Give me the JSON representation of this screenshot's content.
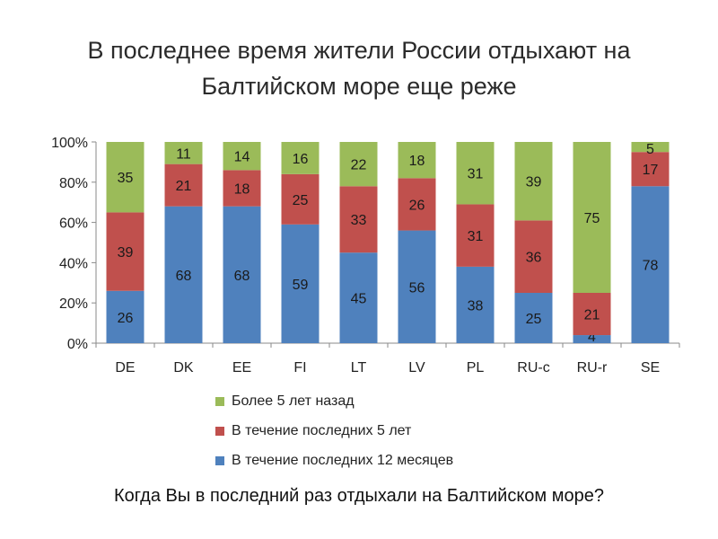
{
  "slide": {
    "title_line1": "В последнее время жители России отдыхают на",
    "title_line2": "Балтийском море еще реже",
    "question": "Когда Вы в последний раз отдыхали на Балтийском море?"
  },
  "chart_data": {
    "type": "bar",
    "stacked": true,
    "percent_stacked": true,
    "categories": [
      "DE",
      "DK",
      "EE",
      "FI",
      "LT",
      "LV",
      "PL",
      "RU-c",
      "RU-r",
      "SE"
    ],
    "series": [
      {
        "name": "В течение последних 12 месяцев",
        "color": "#4f81bd",
        "values": [
          26,
          68,
          68,
          59,
          45,
          56,
          38,
          25,
          4,
          78
        ]
      },
      {
        "name": "В течение последних 5 лет",
        "color": "#c0504d",
        "values": [
          39,
          21,
          18,
          25,
          33,
          26,
          31,
          36,
          21,
          17
        ]
      },
      {
        "name": "Более 5 лет назад",
        "color": "#9bbb59",
        "values": [
          35,
          11,
          14,
          16,
          22,
          18,
          31,
          39,
          75,
          5
        ]
      }
    ],
    "y_ticks": [
      "0%",
      "20%",
      "40%",
      "60%",
      "80%",
      "100%"
    ],
    "ylim": [
      0,
      100
    ],
    "legend_order": [
      "Более 5 лет назад",
      "В течение последних 5 лет",
      "В течение последних 12 месяцев"
    ],
    "legend_position": "bottom",
    "grid": false
  }
}
